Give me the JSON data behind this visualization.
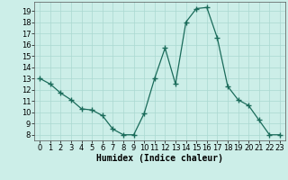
{
  "x": [
    0,
    1,
    2,
    3,
    4,
    5,
    6,
    7,
    8,
    9,
    10,
    11,
    12,
    13,
    14,
    15,
    16,
    17,
    18,
    19,
    20,
    21,
    22,
    23
  ],
  "y": [
    13,
    12.5,
    11.7,
    11.1,
    10.3,
    10.2,
    9.7,
    8.5,
    8.0,
    8.0,
    9.9,
    13.0,
    15.7,
    12.5,
    18.0,
    19.2,
    19.3,
    16.6,
    12.3,
    11.1,
    10.6,
    9.3,
    8.0,
    8.0
  ],
  "line_color": "#1a6b5a",
  "marker": "+",
  "marker_size": 4,
  "bg_color": "#cceee8",
  "grid_color": "#aad8d0",
  "xlabel": "Humidex (Indice chaleur)",
  "xlabel_fontsize": 7,
  "tick_fontsize": 6,
  "ylim": [
    7.5,
    19.8
  ],
  "xlim": [
    -0.5,
    23.5
  ],
  "yticks": [
    8,
    9,
    10,
    11,
    12,
    13,
    14,
    15,
    16,
    17,
    18,
    19
  ],
  "xticks": [
    0,
    1,
    2,
    3,
    4,
    5,
    6,
    7,
    8,
    9,
    10,
    11,
    12,
    13,
    14,
    15,
    16,
    17,
    18,
    19,
    20,
    21,
    22,
    23
  ]
}
